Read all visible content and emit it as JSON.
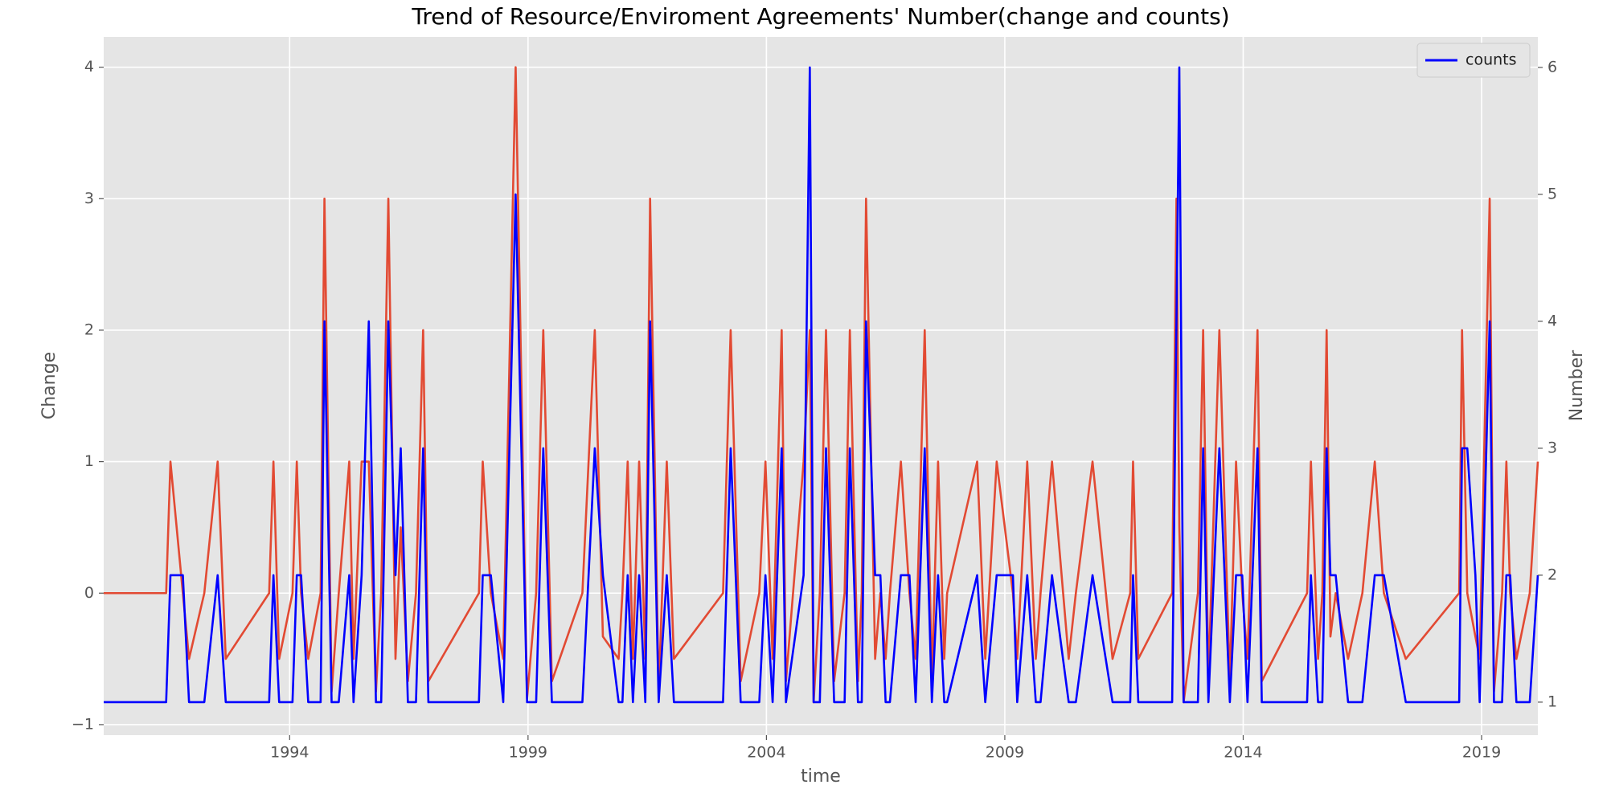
{
  "chart_data": {
    "type": "line",
    "title": "Trend of Resource/Enviroment Agreements' Number(change and counts)",
    "xlabel": "time",
    "ylabel": "Change",
    "y2label": "Number",
    "x": [
      1990.1,
      1991.41,
      1991.5,
      1991.76,
      1991.89,
      1992.21,
      1992.49,
      1992.66,
      1993.57,
      1993.66,
      1993.78,
      1994.06,
      1994.15,
      1994.24,
      1994.39,
      1994.65,
      1994.73,
      1994.88,
      1995.03,
      1995.25,
      1995.34,
      1995.51,
      1995.66,
      1995.81,
      1995.92,
      1996.07,
      1996.22,
      1996.33,
      1996.48,
      1996.65,
      1996.8,
      1996.91,
      1997.97,
      1998.05,
      1998.22,
      1998.48,
      1998.74,
      1998.98,
      1999.17,
      1999.32,
      1999.5,
      2000.14,
      2000.4,
      2000.57,
      2000.9,
      2000.98,
      2001.09,
      2001.2,
      2001.33,
      2001.46,
      2001.56,
      2001.74,
      2001.91,
      2002.06,
      2003.09,
      2003.25,
      2003.46,
      2003.85,
      2003.98,
      2004.13,
      2004.32,
      2004.41,
      2004.78,
      2004.91,
      2004.99,
      2005.12,
      2005.25,
      2005.42,
      2005.64,
      2005.75,
      2005.92,
      2006.0,
      2006.09,
      2006.28,
      2006.39,
      2006.5,
      2006.59,
      2006.82,
      2007.0,
      2007.13,
      2007.32,
      2007.47,
      2007.6,
      2007.73,
      2007.79,
      2008.42,
      2008.59,
      2008.83,
      2009.17,
      2009.26,
      2009.47,
      2009.65,
      2009.75,
      2009.99,
      2010.34,
      2010.49,
      2010.84,
      2011.26,
      2011.63,
      2011.69,
      2011.8,
      2012.51,
      2012.6,
      2012.66,
      2012.75,
      2013.05,
      2013.16,
      2013.27,
      2013.5,
      2013.72,
      2013.85,
      2013.98,
      2014.09,
      2014.3,
      2014.39,
      2015.34,
      2015.42,
      2015.57,
      2015.66,
      2015.75,
      2015.83,
      2015.94,
      2016.2,
      2016.5,
      2016.76,
      2016.95,
      2017.41,
      2018.53,
      2018.59,
      2018.7,
      2018.87,
      2018.96,
      2019.17,
      2019.26,
      2019.43,
      2019.52,
      2019.6,
      2019.73,
      2020.01,
      2020.18
    ],
    "series": [
      {
        "color": "#e24a33",
        "values": [
          0,
          0,
          1,
          0,
          -0.5,
          0,
          1,
          -0.5,
          0,
          1,
          -0.5,
          0,
          1,
          0,
          -0.5,
          0,
          3,
          -0.75,
          0,
          1,
          -0.5,
          1,
          1,
          -0.75,
          0,
          3,
          -0.5,
          0.5,
          -0.67,
          0,
          2,
          -0.67,
          0,
          1,
          0,
          -0.5,
          4,
          -0.8,
          0,
          2,
          -0.67,
          0,
          2,
          -0.33,
          -0.5,
          0,
          1,
          -0.5,
          1,
          -0.5,
          3,
          -0.75,
          1,
          -0.5,
          0,
          2,
          -0.67,
          0,
          1,
          -0.5,
          2,
          -0.67,
          1,
          2,
          -0.83,
          0,
          2,
          -0.67,
          0,
          2,
          -0.67,
          0,
          3,
          -0.5,
          0,
          -0.5,
          0,
          1,
          0,
          -0.5,
          2,
          -0.67,
          1,
          -0.5,
          0,
          1,
          -0.5,
          1,
          0,
          -0.5,
          1,
          -0.5,
          0,
          1,
          -0.5,
          0,
          1,
          -0.5,
          0,
          1,
          -0.5,
          0,
          3,
          0.5,
          -0.83,
          0,
          2,
          -0.67,
          2,
          -0.67,
          1,
          0,
          -0.5,
          2,
          -0.67,
          0,
          1,
          -0.5,
          0,
          2,
          -0.33,
          0,
          -0.5,
          0,
          1,
          0,
          -0.5,
          0,
          2,
          0,
          -0.33,
          -0.5,
          3,
          -0.75,
          0,
          1,
          0,
          -0.5,
          0,
          1
        ]
      },
      {
        "name": "counts",
        "color": "#0000ff",
        "axis": "y2",
        "values": [
          1,
          1,
          2,
          2,
          1,
          1,
          2,
          1,
          1,
          2,
          1,
          1,
          2,
          2,
          1,
          1,
          4,
          1,
          1,
          2,
          1,
          2,
          4,
          1,
          1,
          4,
          2,
          3,
          1,
          1,
          3,
          1,
          1,
          2,
          2,
          1,
          5,
          1,
          1,
          3,
          1,
          1,
          3,
          2,
          1,
          1,
          2,
          1,
          2,
          1,
          4,
          1,
          2,
          1,
          1,
          3,
          1,
          1,
          2,
          1,
          3,
          1,
          2,
          6,
          1,
          1,
          3,
          1,
          1,
          3,
          1,
          1,
          4,
          2,
          2,
          1,
          1,
          2,
          2,
          1,
          3,
          1,
          2,
          1,
          1,
          2,
          1,
          2,
          2,
          1,
          2,
          1,
          1,
          2,
          1,
          1,
          2,
          1,
          1,
          2,
          1,
          1,
          4,
          6,
          1,
          1,
          3,
          1,
          3,
          1,
          2,
          2,
          1,
          3,
          1,
          1,
          2,
          1,
          1,
          3,
          2,
          2,
          1,
          1,
          2,
          2,
          1,
          1,
          3,
          3,
          2,
          1,
          4,
          1,
          1,
          2,
          2,
          1,
          1,
          2
        ]
      }
    ],
    "xlim": [
      1990.1,
      2020.18
    ],
    "xticks": [
      1994,
      1999,
      2004,
      2009,
      2014,
      2019
    ],
    "ylim": [
      -1.08,
      4.23
    ],
    "yticks": [
      {
        "value": -1,
        "label": "−1"
      },
      0,
      1,
      2,
      3,
      4
    ],
    "y2lim": [
      0.74,
      6.24
    ],
    "y2ticks": [
      1,
      2,
      3,
      4,
      5,
      6
    ],
    "grid": true,
    "legend": "upper right"
  }
}
